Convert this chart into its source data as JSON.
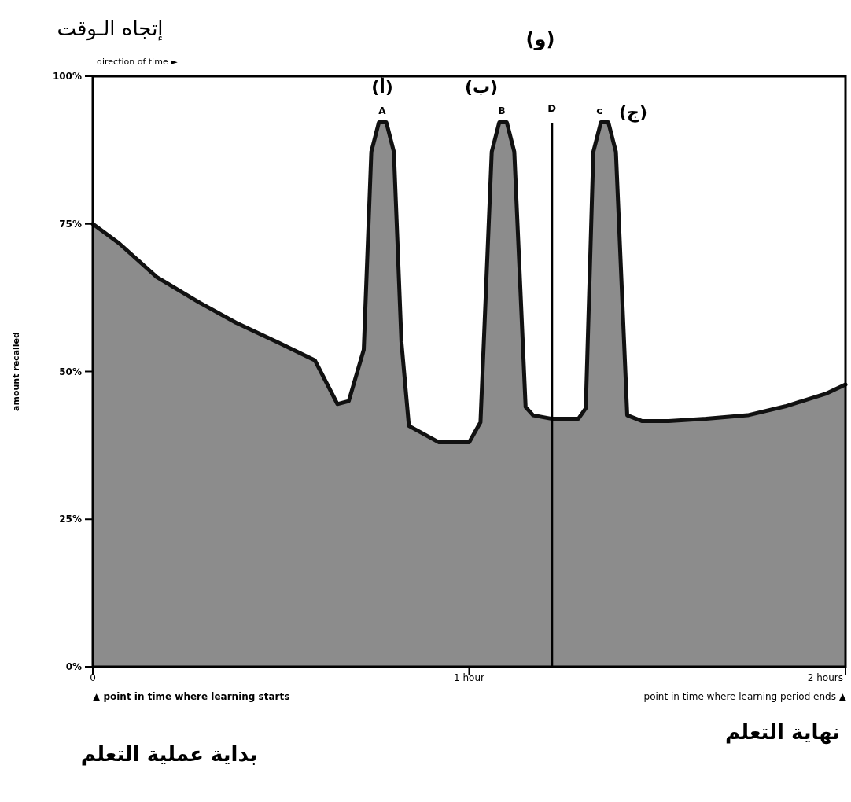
{
  "chart_data": {
    "type": "area",
    "title": "إتجاه الـوقت",
    "ylabel": "amount recalled",
    "xlim": [
      0,
      2
    ],
    "ylim": [
      0,
      100
    ],
    "xticks": [
      {
        "value": 0,
        "label": "0"
      },
      {
        "value": 1,
        "label": "1 hour"
      },
      {
        "value": 2,
        "label": "2 hours"
      }
    ],
    "yticks": [
      {
        "value": 0,
        "label": "0%"
      },
      {
        "value": 25,
        "label": "25%"
      },
      {
        "value": 50,
        "label": "50%"
      },
      {
        "value": 75,
        "label": "75%"
      },
      {
        "value": 100,
        "label": "100%"
      }
    ],
    "series": [
      {
        "color": "#8c8c8c",
        "x": [
          0,
          0.07,
          0.17,
          0.28,
          0.38,
          0.49,
          0.59,
          0.65,
          0.68,
          0.72,
          0.74,
          0.76,
          0.78,
          0.8,
          0.82,
          0.84,
          0.92,
          1.0,
          1.03,
          1.06,
          1.08,
          1.1,
          1.12,
          1.15,
          1.17,
          1.22,
          1.29,
          1.31,
          1.33,
          1.35,
          1.37,
          1.39,
          1.42,
          1.46,
          1.53,
          1.63,
          1.74,
          1.84,
          1.95,
          2.0
        ],
        "values": [
          75,
          71.7,
          66,
          61.8,
          58.3,
          55,
          51.9,
          44.5,
          45,
          53.7,
          87.2,
          92.2,
          92.2,
          87.2,
          55,
          40.8,
          38,
          38,
          41.4,
          87.2,
          92.2,
          92.2,
          87.2,
          44,
          42.6,
          42,
          42,
          43.8,
          87.2,
          92.2,
          92.2,
          87.2,
          42.6,
          41.6,
          41.6,
          42,
          42.6,
          44.1,
          46.3,
          47.8
        ]
      }
    ],
    "ref_lines": [
      {
        "axis": "x",
        "value": 1.22,
        "label": "D",
        "color": "#000000"
      }
    ],
    "annotations": [
      "direction of time ►",
      "(و)",
      "(أ)",
      "A",
      "(ب)",
      "B",
      "c",
      "(ج)",
      "▲ point in time where learning starts",
      "point in time where learning period ends ▲",
      "بداية عملية التعلم",
      "نهاية التعلم"
    ],
    "grid": false
  }
}
